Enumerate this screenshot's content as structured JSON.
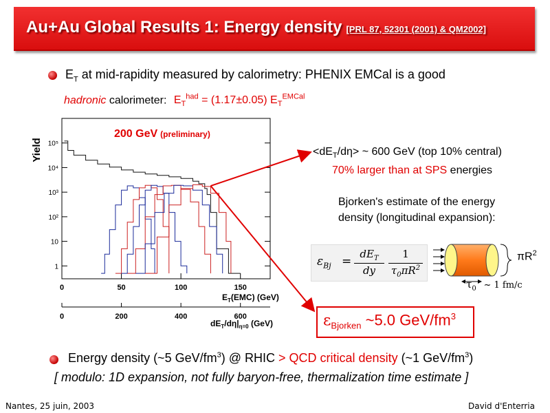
{
  "slide": {
    "title": "Au+Au Global Results 1: Energy density",
    "title_ref": "[PRL 87, 52301 (2001) & QM2002]",
    "bullet1": {
      "et_symbol": "E",
      "et_sub": "T",
      "text": " at mid-rapidity measured by calorimetry: PHENIX EMCal is a good",
      "hadronic": "hadronic",
      "calorimeter": " calorimeter:",
      "eq_e": "E",
      "eq_sub1": "T",
      "eq_sup1": "had",
      "eq_mid": " = (1.17±0.05) E",
      "eq_sub2": "T",
      "eq_sup2": "EMCal"
    },
    "annotation": {
      "det_open": "<dE",
      "det_sub": "T",
      "det_rest": "/dη> ~ 600 GeV (top 10% central)",
      "line2_red": "70% larger than at SPS",
      "line2_black": " energies",
      "bjorken1": "Bjorken's estimate of the energy",
      "bjorken2": "density (longitudinal expansion):"
    },
    "formula": {
      "lhs_eps": "ε",
      "lhs_sub": "Bj",
      "eq": "=",
      "num1": "dE",
      "num1_sub": "T",
      "den1": "dy",
      "num2": "1",
      "den2": "τ",
      "den2_sub": "0",
      "den2_rest": "πR",
      "den2_sup": "2"
    },
    "cylinder": {
      "area": "πR",
      "area_sup": "2",
      "tau": "τ",
      "tau_sub": "0",
      "tau_value": "~ 1 fm/c"
    },
    "result": {
      "eps": "ε",
      "sub": "Bjorken",
      "text": " ~5.0 GeV/fm",
      "sup": "3"
    },
    "bullet2": {
      "text1": "Energy density (~5 GeV/fm",
      "sup1": "3",
      "text2": ") @ RHIC ",
      "red": "> QCD critical density",
      "text3": " (~1 GeV/fm",
      "sup2": "3",
      "text4": ")"
    },
    "modulo": "[ modulo: 1D expansion, not fully baryon-free, thermalization time estimate ]",
    "footer_left": "Nantes, 25 juin, 2003",
    "footer_right": "David d'Enterria",
    "colors": {
      "title_bg": "#e01818",
      "accent_red": "#e00000",
      "hist_blue": "#1a2a9a",
      "hist_red": "#cc2020"
    }
  },
  "chart_data": {
    "type": "line",
    "plot_label": "200 GeV",
    "plot_label_note": "(preliminary)",
    "ylabel": "Yield",
    "xlabel_main": "E",
    "xlabel_main_sub": "T",
    "xlabel_main_rest": "(EMC) (GeV)",
    "xlabel_second": "dE",
    "xlabel_second_sub": "T",
    "xlabel_second_rest": "/dη|",
    "xlabel_second_sub2": "η=0",
    "xlabel_second_unit": " (GeV)",
    "yscale": "log",
    "xlim": [
      0,
      175
    ],
    "ylim": [
      0.3,
      1000000
    ],
    "x_ticks": [
      "0",
      "50",
      "100",
      "150"
    ],
    "x_ticks_values": [
      0,
      50,
      100,
      150
    ],
    "second_x_ticks": [
      "0",
      "200",
      "400",
      "600"
    ],
    "second_x_ticks_values": [
      0,
      200,
      400,
      600
    ],
    "y_ticks": [
      "1",
      "10",
      "10²",
      "10³",
      "10⁴",
      "10⁵"
    ],
    "y_ticks_values": [
      1,
      10,
      100,
      1000,
      10000,
      100000
    ],
    "series": [
      {
        "color": "black",
        "x": [
          2,
          5,
          10,
          20,
          30,
          40,
          50,
          60,
          70,
          80,
          90,
          100,
          110,
          115,
          120,
          122,
          125,
          130,
          140,
          150
        ],
        "y": [
          120000,
          50000,
          32000,
          20000,
          14000,
          10500,
          8000,
          6500,
          5500,
          4800,
          4200,
          3600,
          2800,
          2200,
          1400,
          800,
          150,
          5,
          0.5,
          0.5
        ]
      },
      {
        "color": "blue",
        "x": [
          33,
          36,
          40,
          45,
          50,
          55,
          60,
          65,
          70,
          75,
          78
        ],
        "y": [
          0.5,
          3,
          30,
          300,
          1200,
          1800,
          1500,
          600,
          80,
          5,
          0.5
        ]
      },
      {
        "color": "red",
        "x": [
          45,
          50,
          55,
          60,
          65,
          70,
          75,
          80,
          85,
          90
        ],
        "y": [
          0.5,
          5,
          60,
          500,
          1500,
          1900,
          1500,
          500,
          40,
          0.5
        ]
      },
      {
        "color": "blue",
        "x": [
          50,
          55,
          60,
          65,
          70,
          75,
          80,
          85,
          90,
          95,
          100,
          105
        ],
        "y": [
          0.5,
          3,
          40,
          300,
          1200,
          1900,
          1700,
          900,
          150,
          10,
          1,
          0.5
        ]
      },
      {
        "color": "red",
        "x": [
          55,
          62,
          70,
          78,
          85,
          92,
          100,
          108,
          115,
          120,
          125
        ],
        "y": [
          0.5,
          5,
          100,
          800,
          1800,
          1900,
          1300,
          400,
          40,
          3,
          0.5
        ]
      },
      {
        "color": "blue",
        "x": [
          62,
          70,
          78,
          86,
          94,
          102,
          110,
          118,
          124,
          130,
          135
        ],
        "y": [
          0.5,
          8,
          150,
          900,
          1900,
          1800,
          1200,
          300,
          40,
          3,
          0.5
        ]
      },
      {
        "color": "red",
        "x": [
          70,
          80,
          90,
          100,
          110,
          118,
          125,
          132,
          138,
          142
        ],
        "y": [
          0.5,
          15,
          300,
          1400,
          2000,
          1700,
          900,
          150,
          10,
          0.5
        ]
      }
    ],
    "arrows": [
      {
        "from_x": 125,
        "from_y": 1800,
        "to": "annotation"
      },
      {
        "from_x": 125,
        "from_y": 1800,
        "to": "result"
      }
    ]
  }
}
